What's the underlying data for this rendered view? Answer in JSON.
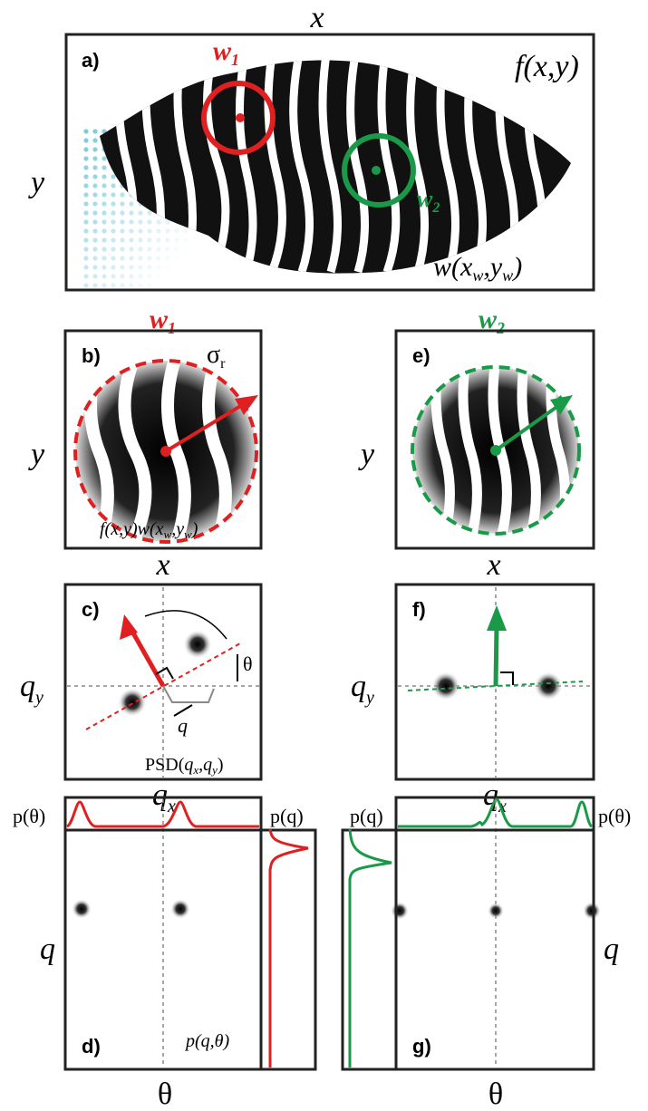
{
  "panel_a": {
    "label": "a)",
    "axis_x": "x",
    "axis_y": "y",
    "function": "f(x,y)",
    "window_1": {
      "main": "w",
      "sub": "1"
    },
    "window_2": {
      "main": "w",
      "sub": "2"
    },
    "window_function": {
      "a": "w(x",
      "b": "w",
      "c": ",y",
      "d": "w",
      "e": ")"
    }
  },
  "panel_b": {
    "label": "b)",
    "title": {
      "main": "w",
      "sub": "1"
    },
    "axis_x": "x",
    "axis_y": "y",
    "radius": {
      "main": "σ",
      "sub": "r"
    },
    "product": {
      "a": "f(x,y)w(x",
      "b": "w",
      "c": ",y",
      "d": "w",
      "e": ")"
    }
  },
  "panel_e": {
    "label": "e)",
    "title": {
      "main": "w",
      "sub": "2"
    },
    "axis_x": "x",
    "axis_y": "y"
  },
  "panel_c": {
    "label": "c)",
    "angle": "θ",
    "radius": "q",
    "axis_x": {
      "main": "q",
      "sub": "x"
    },
    "axis_y": {
      "main": "q",
      "sub": "y"
    },
    "psd": {
      "a": "PSD(",
      "b": "q",
      "c": "x",
      "d": ",",
      "e": "q",
      "f": "y",
      "g": ")"
    }
  },
  "panel_f": {
    "label": "f)",
    "axis_x": {
      "main": "q",
      "sub": "x"
    },
    "axis_y": {
      "main": "q",
      "sub": "y"
    }
  },
  "panel_d": {
    "label": "d)",
    "p_theta": "p(θ)",
    "p_q": "p(q)",
    "axis_y": "q",
    "axis_x": "θ",
    "distribution": "p(q,θ)"
  },
  "panel_g": {
    "label": "g)",
    "p_theta": "p(θ)",
    "p_q": "p(q)",
    "axis_y": "q",
    "axis_x": "θ"
  }
}
